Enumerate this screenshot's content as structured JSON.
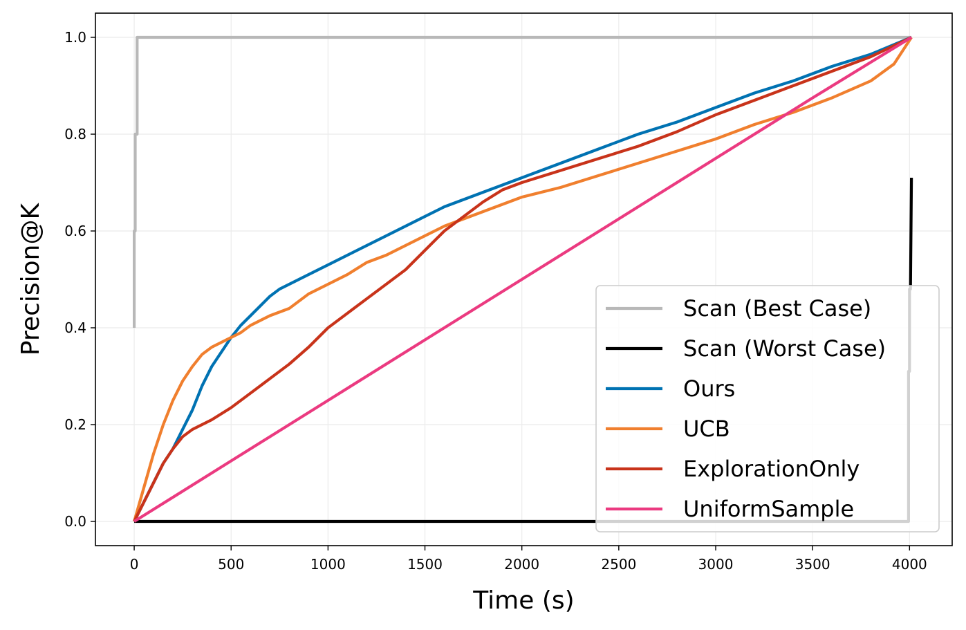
{
  "chart_data": {
    "type": "line",
    "title": "",
    "xlabel": "Time (s)",
    "ylabel": "Precision@K",
    "xlim": [
      -200,
      4220
    ],
    "ylim": [
      -0.05,
      1.05
    ],
    "xticks": [
      0,
      500,
      1000,
      1500,
      2000,
      2500,
      3000,
      3500,
      4000
    ],
    "xtick_labels": [
      "0",
      "500",
      "1000",
      "1500",
      "2000",
      "2500",
      "3000",
      "3500",
      "4000"
    ],
    "yticks": [
      0.0,
      0.2,
      0.4,
      0.6,
      0.8,
      1.0
    ],
    "ytick_labels": [
      "0.0",
      "0.2",
      "0.4",
      "0.6",
      "0.8",
      "1.0"
    ],
    "grid": true,
    "legend_position": "lower-right",
    "series": [
      {
        "name": "Scan (Best Case)",
        "color": "#b8b8b8",
        "x": [
          0,
          0,
          5,
          5,
          15,
          15,
          4010
        ],
        "y": [
          0.4,
          0.6,
          0.6,
          0.8,
          0.8,
          1.0,
          1.0
        ]
      },
      {
        "name": "Scan (Worst Case)",
        "color": "#000000",
        "x": [
          0,
          3995,
          3995,
          4000,
          4000,
          4005,
          4010,
          4010
        ],
        "y": [
          0.0,
          0.0,
          0.31,
          0.31,
          0.48,
          0.48,
          0.71,
          0.71
        ]
      },
      {
        "name": "Ours",
        "color": "#0072b2",
        "x": [
          0,
          50,
          100,
          150,
          200,
          250,
          300,
          350,
          400,
          450,
          500,
          550,
          600,
          650,
          700,
          750,
          800,
          900,
          1000,
          1100,
          1200,
          1300,
          1400,
          1500,
          1600,
          1700,
          1800,
          1900,
          2000,
          2200,
          2400,
          2600,
          2800,
          3000,
          3200,
          3400,
          3600,
          3800,
          4010
        ],
        "y": [
          0.0,
          0.04,
          0.08,
          0.12,
          0.15,
          0.19,
          0.23,
          0.28,
          0.32,
          0.35,
          0.38,
          0.405,
          0.425,
          0.445,
          0.465,
          0.48,
          0.49,
          0.51,
          0.53,
          0.55,
          0.57,
          0.59,
          0.61,
          0.63,
          0.65,
          0.665,
          0.68,
          0.695,
          0.71,
          0.74,
          0.77,
          0.8,
          0.825,
          0.855,
          0.885,
          0.91,
          0.94,
          0.965,
          1.0
        ]
      },
      {
        "name": "UCB",
        "color": "#f07f2e",
        "x": [
          0,
          50,
          100,
          150,
          200,
          250,
          300,
          350,
          400,
          450,
          500,
          550,
          600,
          650,
          700,
          800,
          900,
          1000,
          1100,
          1200,
          1300,
          1400,
          1500,
          1600,
          1700,
          1800,
          1900,
          2000,
          2200,
          2400,
          2600,
          2800,
          3000,
          3200,
          3400,
          3600,
          3800,
          3920,
          4010
        ],
        "y": [
          0.0,
          0.07,
          0.14,
          0.2,
          0.25,
          0.29,
          0.32,
          0.345,
          0.36,
          0.37,
          0.38,
          0.39,
          0.405,
          0.415,
          0.425,
          0.44,
          0.47,
          0.49,
          0.51,
          0.535,
          0.55,
          0.57,
          0.59,
          0.61,
          0.625,
          0.64,
          0.655,
          0.67,
          0.69,
          0.715,
          0.74,
          0.765,
          0.79,
          0.82,
          0.845,
          0.875,
          0.91,
          0.945,
          1.0
        ]
      },
      {
        "name": "ExplorationOnly",
        "color": "#c8331a",
        "x": [
          0,
          50,
          100,
          150,
          200,
          250,
          300,
          350,
          400,
          500,
          600,
          700,
          800,
          900,
          1000,
          1100,
          1200,
          1300,
          1400,
          1500,
          1600,
          1700,
          1800,
          1900,
          2000,
          2200,
          2400,
          2600,
          2800,
          3000,
          3200,
          3400,
          3600,
          3800,
          4010
        ],
        "y": [
          0.0,
          0.04,
          0.08,
          0.12,
          0.15,
          0.175,
          0.19,
          0.2,
          0.21,
          0.235,
          0.265,
          0.295,
          0.325,
          0.36,
          0.4,
          0.43,
          0.46,
          0.49,
          0.52,
          0.56,
          0.6,
          0.63,
          0.66,
          0.685,
          0.7,
          0.725,
          0.75,
          0.775,
          0.805,
          0.84,
          0.87,
          0.9,
          0.93,
          0.96,
          1.0
        ]
      },
      {
        "name": "UniformSample",
        "color": "#eb3a80",
        "x": [
          0,
          500,
          1000,
          1500,
          2000,
          2500,
          3000,
          3500,
          4010
        ],
        "y": [
          0.0,
          0.125,
          0.25,
          0.375,
          0.5,
          0.625,
          0.75,
          0.875,
          1.0
        ]
      }
    ]
  }
}
